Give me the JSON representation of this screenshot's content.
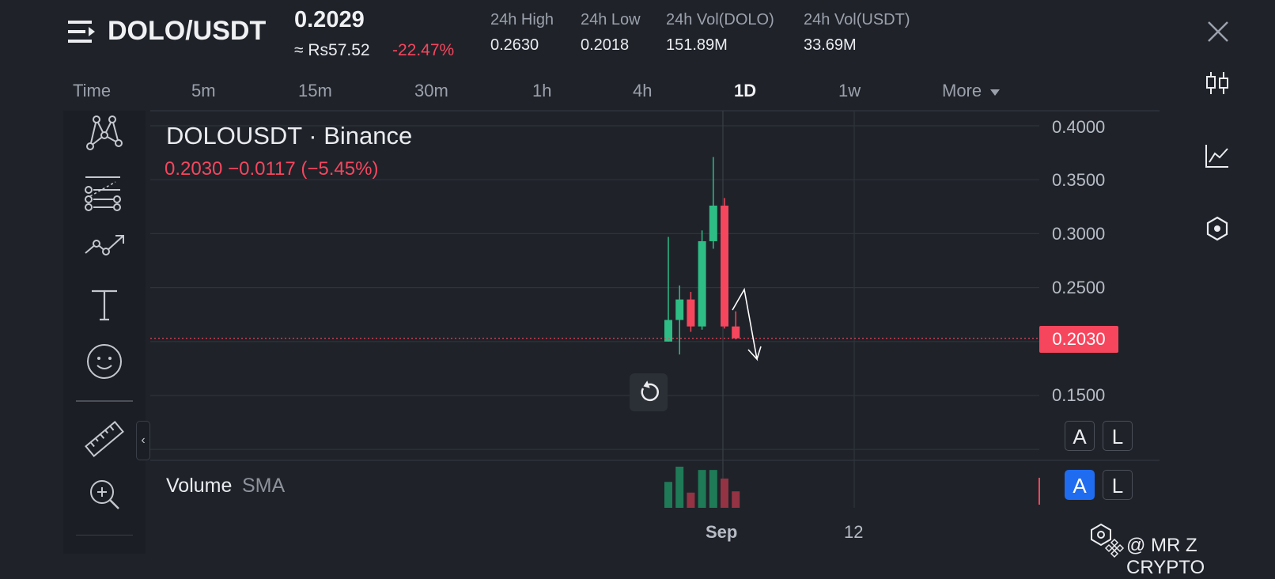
{
  "header": {
    "pair": "DOLO/USDT",
    "last_price": "0.2029",
    "fiat_price": "≈ Rs57.52",
    "change_pct": "-22.47%",
    "stats": [
      {
        "label": "24h High",
        "value": "0.2630"
      },
      {
        "label": "24h Low",
        "value": "0.2018"
      },
      {
        "label": "24h Vol(DOLO)",
        "value": "151.89M"
      },
      {
        "label": "24h Vol(USDT)",
        "value": "33.69M"
      }
    ]
  },
  "timeframes": [
    "Time",
    "5m",
    "15m",
    "30m",
    "1h",
    "4h",
    "1D",
    "1w",
    "More"
  ],
  "active_timeframe": "1D",
  "chart": {
    "symbol": "DOLOUSDT · Binance",
    "ohlc": "0.2030  −0.0117 (−5.45%)",
    "volume_label": "Volume",
    "volume_sma": "SMA",
    "current_price_tag": "0.2030",
    "x_ticks": [
      "Sep",
      "12"
    ]
  },
  "chart_data": {
    "type": "candlestick",
    "y_ticks": [
      "0.4000",
      "0.3500",
      "0.3000",
      "0.2500",
      "0.1500"
    ],
    "ylim": [
      0.1,
      0.41
    ],
    "current_price": 0.203,
    "candles": [
      {
        "open": 0.2,
        "high": 0.297,
        "low": 0.2,
        "close": 0.22,
        "dir": "up"
      },
      {
        "open": 0.22,
        "high": 0.252,
        "low": 0.188,
        "close": 0.239,
        "dir": "up"
      },
      {
        "open": 0.239,
        "high": 0.246,
        "low": 0.209,
        "close": 0.214,
        "dir": "down"
      },
      {
        "open": 0.214,
        "high": 0.303,
        "low": 0.211,
        "close": 0.293,
        "dir": "up"
      },
      {
        "open": 0.293,
        "high": 0.371,
        "low": 0.286,
        "close": 0.326,
        "dir": "up"
      },
      {
        "open": 0.326,
        "high": 0.333,
        "low": 0.212,
        "close": 0.214,
        "dir": "down"
      },
      {
        "open": 0.214,
        "high": 0.228,
        "low": 0.202,
        "close": 0.203,
        "dir": "down"
      }
    ],
    "volumes": [
      0.63,
      1.0,
      0.37,
      0.92,
      0.92,
      0.71,
      0.4
    ],
    "colors": {
      "up": "#2ebd85",
      "down": "#f6465d",
      "vol_up": "#1f7a57",
      "vol_down": "#933344"
    }
  },
  "toolbar": {
    "left_tools": [
      "pattern-icon",
      "fib-retracement-icon",
      "trend-line-icon",
      "text-icon",
      "emoji-icon",
      "ruler-icon",
      "zoom-in-icon"
    ],
    "collapse_glyph": "‹",
    "right_tools": [
      "candlestick-icon",
      "line-chart-icon",
      "indicator-icon"
    ]
  },
  "scale_buttons": [
    {
      "a": "A",
      "l": "L"
    },
    {
      "a": "A",
      "l": "L"
    }
  ],
  "watermark": "@ MR Z CRYPTO"
}
